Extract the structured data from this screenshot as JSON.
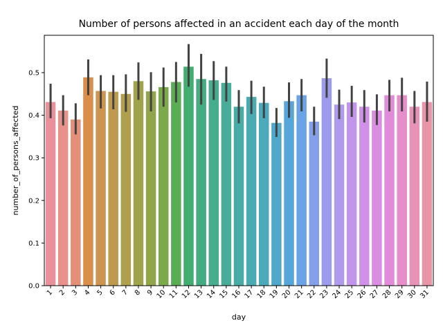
{
  "chart_data": {
    "type": "bar",
    "title": "Number of persons affected in an accident each day of the month",
    "xlabel": "day",
    "ylabel": "number_of_persons_affected",
    "ylim": [
      0,
      0.5
    ],
    "yticks": [
      "0.0",
      "0.1",
      "0.2",
      "0.3",
      "0.4",
      "0.5"
    ],
    "categories": [
      "1",
      "2",
      "3",
      "4",
      "5",
      "6",
      "7",
      "8",
      "9",
      "10",
      "11",
      "12",
      "13",
      "14",
      "15",
      "16",
      "17",
      "18",
      "19",
      "20",
      "21",
      "22",
      "23",
      "24",
      "25",
      "26",
      "27",
      "28",
      "29",
      "30",
      "31"
    ],
    "values": [
      0.431,
      0.411,
      0.39,
      0.489,
      0.457,
      0.455,
      0.45,
      0.48,
      0.456,
      0.466,
      0.478,
      0.514,
      0.485,
      0.482,
      0.476,
      0.42,
      0.443,
      0.429,
      0.382,
      0.433,
      0.447,
      0.385,
      0.487,
      0.425,
      0.43,
      0.42,
      0.411,
      0.447,
      0.447,
      0.42,
      0.431
    ],
    "err_low": [
      0.393,
      0.376,
      0.355,
      0.447,
      0.416,
      0.414,
      0.408,
      0.436,
      0.409,
      0.42,
      0.43,
      0.467,
      0.425,
      0.436,
      0.432,
      0.381,
      0.403,
      0.393,
      0.349,
      0.394,
      0.409,
      0.353,
      0.441,
      0.391,
      0.396,
      0.383,
      0.377,
      0.409,
      0.409,
      0.381,
      0.385
    ],
    "err_high": [
      0.474,
      0.447,
      0.428,
      0.531,
      0.494,
      0.494,
      0.496,
      0.524,
      0.501,
      0.512,
      0.525,
      0.567,
      0.544,
      0.527,
      0.514,
      0.459,
      0.481,
      0.467,
      0.417,
      0.477,
      0.485,
      0.42,
      0.533,
      0.46,
      0.469,
      0.459,
      0.449,
      0.483,
      0.488,
      0.457,
      0.479
    ],
    "colors": [
      "#e8919a",
      "#e7938c",
      "#e29077",
      "#d98e4a",
      "#cd9550",
      "#bf9a4e",
      "#b09f4d",
      "#a0a34c",
      "#91a64b",
      "#7ca94a",
      "#5bad55",
      "#42ad71",
      "#44ab83",
      "#46ad8e",
      "#48ac99",
      "#48aba5",
      "#4aabb0",
      "#4caabc",
      "#4fa8c9",
      "#56a6d9",
      "#6aa3e6",
      "#85a0ea",
      "#9b9ceb",
      "#b09aeb",
      "#c395ea",
      "#d291e8",
      "#da8ee1",
      "#e18cd8",
      "#e68ec9",
      "#e892b8",
      "#e895a8"
    ],
    "error_color": "#424242"
  }
}
